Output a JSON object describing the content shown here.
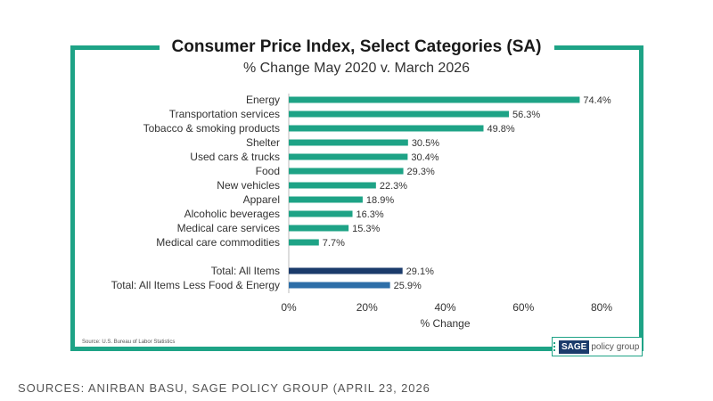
{
  "chart_data": {
    "type": "bar",
    "orientation": "horizontal",
    "title": "Consumer Price Index, Select Categories (SA)",
    "subtitle": "% Change May 2020 v. March 2026",
    "xlabel": "% Change",
    "xlim": [
      0,
      80
    ],
    "xticks": [
      "0%",
      "20%",
      "40%",
      "60%",
      "80%"
    ],
    "grid": false,
    "categories": [
      "Energy",
      "Transportation services",
      "Tobacco & smoking products",
      "Shelter",
      "Used cars & trucks",
      "Food",
      "New vehicles",
      "Apparel",
      "Alcoholic beverages",
      "Medical care services",
      "Medical care commodities",
      "Total: All Items",
      "Total: All Items Less Food & Energy"
    ],
    "values": [
      74.4,
      56.3,
      49.8,
      30.5,
      30.4,
      29.3,
      22.3,
      18.9,
      16.3,
      15.3,
      7.7,
      29.1,
      25.9
    ],
    "value_labels": [
      "74.4%",
      "56.3%",
      "49.8%",
      "30.5%",
      "30.4%",
      "29.3%",
      "22.3%",
      "18.9%",
      "16.3%",
      "15.3%",
      "7.7%",
      "29.1%",
      "25.9%"
    ],
    "colors": [
      "#1ea386",
      "#1ea386",
      "#1ea386",
      "#1ea386",
      "#1ea386",
      "#1ea386",
      "#1ea386",
      "#1ea386",
      "#1ea386",
      "#1ea386",
      "#1ea386",
      "#1b3b6b",
      "#2d6ea8"
    ]
  },
  "source_note": "Source: U.S. Bureau of Labor Statistics",
  "logo": {
    "brand": "SAGE",
    "rest": "policy group"
  },
  "footer": "SOURCES: ANIRBAN BASU, SAGE POLICY GROUP (APRIL 23, 2026"
}
